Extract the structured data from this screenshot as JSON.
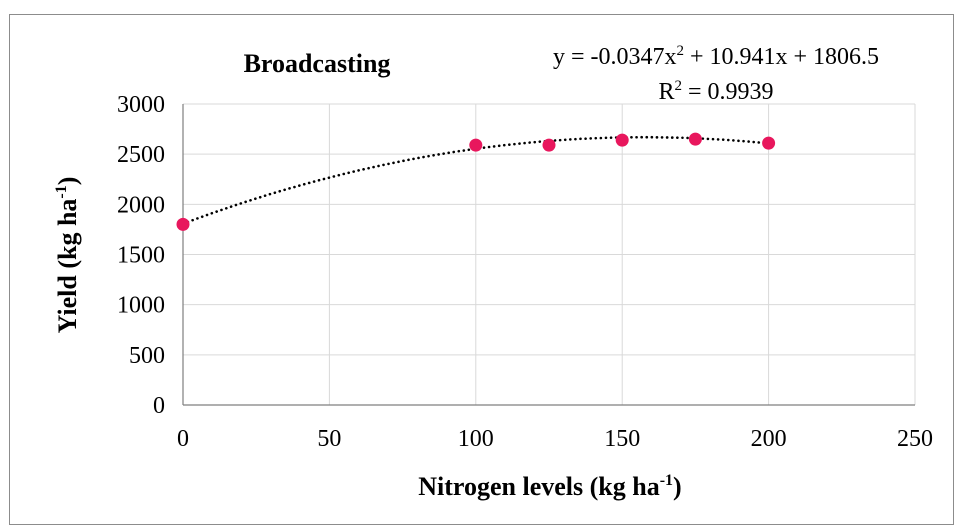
{
  "chart_data": {
    "type": "scatter",
    "title": "Broadcasting",
    "xlabel": "Nitrogen levels (kg ha-1)",
    "xlabel_parts": {
      "main": "Nitrogen levels (kg ha",
      "sup": "-1",
      "close": ")"
    },
    "ylabel": "Yield (kg ha-1)",
    "ylabel_parts": {
      "main": "Yield (kg ha",
      "sup": "-1",
      "close": ")"
    },
    "xlim": [
      0,
      250
    ],
    "ylim": [
      0,
      3000
    ],
    "x_ticks": [
      0,
      50,
      100,
      150,
      200,
      250
    ],
    "y_ticks": [
      0,
      500,
      1000,
      1500,
      2000,
      2500,
      3000
    ],
    "grid": true,
    "series": [
      {
        "x": [
          0,
          100,
          125,
          150,
          175,
          200
        ],
        "y": [
          1800,
          2590,
          2590,
          2640,
          2650,
          2610
        ]
      }
    ],
    "trendline": {
      "type": "polynomial",
      "order": 2,
      "coefficients": {
        "a": -0.0347,
        "b": 10.941,
        "c": 1806.5
      },
      "x_range": [
        0,
        200
      ],
      "style": "dotted"
    },
    "equation": {
      "prefix": "y = -0.0347x",
      "sup": "2",
      "suffix": " + 10.941x + 1806.5"
    },
    "r_squared": {
      "prefix": "R",
      "sup": "2",
      "suffix": " = 0.9939"
    },
    "colors": {
      "marker": "#e8175d",
      "trendline": "#000000",
      "grid": "#d9d9d9",
      "axis": "#7f7f7f"
    }
  }
}
